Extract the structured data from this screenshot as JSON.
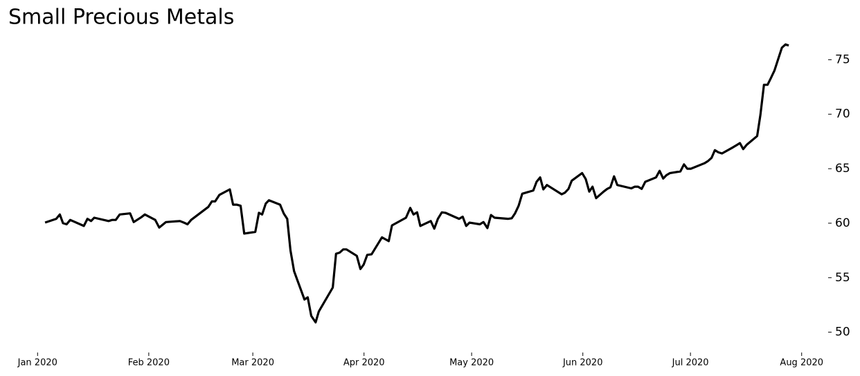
{
  "chart_data": {
    "type": "line",
    "title": "Small Precious Metals",
    "x": [
      2.1,
      5.2,
      6.2,
      7.1,
      8.1,
      9.1,
      12.9,
      13.9,
      14.9,
      15.8,
      19.8,
      20.8,
      21.8,
      22.9,
      25.8,
      26.8,
      28.9,
      29.9,
      32.8,
      33.9,
      35.8,
      39.7,
      40.8,
      41.8,
      42.8,
      47.6,
      48.6,
      49.5,
      50.7,
      53.6,
      54.5,
      55.5,
      56.6,
      57.6,
      60.7,
      61.7,
      62.6,
      63.6,
      64.5,
      67.6,
      68.6,
      69.6,
      70.5,
      71.5,
      72.4,
      74.4,
      75.3,
      76.3,
      77.5,
      78.4,
      82.3,
      83.2,
      84.2,
      85.2,
      86.1,
      89.0,
      90.0,
      90.9,
      91.9,
      93.1,
      96.0,
      97.9,
      98.8,
      102.7,
      103.9,
      104.8,
      105.8,
      106.7,
      109.6,
      110.6,
      111.6,
      112.7,
      113.7,
      117.5,
      118.5,
      119.5,
      120.4,
      123.3,
      124.3,
      125.4,
      126.4,
      127.4,
      131.2,
      132.2,
      133.1,
      134.1,
      135.1,
      138.2,
      139.1,
      140.1,
      141.0,
      142.0,
      146.1,
      147.0,
      148.0,
      148.9,
      151.8,
      152.8,
      153.8,
      154.7,
      155.7,
      157.8,
      158.8,
      159.7,
      160.7,
      161.6,
      165.5,
      166.5,
      167.4,
      168.4,
      169.4,
      172.4,
      173.4,
      174.4,
      175.3,
      176.3,
      179.2,
      180.2,
      181.1,
      182.1,
      185.9,
      186.9,
      187.9,
      188.8,
      189.8,
      190.8,
      193.8,
      194.8,
      195.8,
      196.7,
      197.7,
      200.6,
      201.5,
      202.5,
      203.5,
      204.4,
      205.4,
      207.5,
      208.5,
      209.4
    ],
    "series": [
      {
        "name": "Small Precious Metals",
        "color": "#000000",
        "values": [
          60.06,
          60.4,
          60.8,
          60.0,
          59.9,
          60.3,
          59.75,
          60.4,
          60.2,
          60.5,
          60.2,
          60.3,
          60.3,
          60.8,
          60.9,
          60.1,
          60.55,
          60.8,
          60.3,
          59.6,
          60.1,
          60.2,
          60.05,
          59.9,
          60.3,
          61.5,
          62.0,
          62.0,
          62.6,
          63.1,
          61.7,
          61.7,
          61.6,
          59.05,
          59.2,
          60.95,
          60.8,
          61.8,
          62.1,
          61.7,
          60.9,
          60.4,
          57.5,
          55.6,
          54.8,
          53.0,
          53.2,
          51.5,
          50.9,
          51.9,
          54.1,
          57.2,
          57.3,
          57.6,
          57.6,
          57.0,
          55.8,
          56.2,
          57.1,
          57.15,
          58.7,
          58.35,
          59.8,
          60.5,
          61.4,
          60.8,
          61.0,
          59.75,
          60.2,
          59.5,
          60.4,
          61.0,
          60.95,
          60.4,
          60.6,
          59.75,
          60.05,
          59.9,
          60.1,
          59.55,
          60.75,
          60.5,
          60.4,
          60.45,
          60.9,
          61.6,
          62.7,
          63.0,
          63.8,
          64.2,
          63.1,
          63.5,
          62.65,
          62.8,
          63.15,
          63.9,
          64.6,
          64.05,
          62.9,
          63.35,
          62.3,
          62.9,
          63.15,
          63.3,
          64.3,
          63.5,
          63.2,
          63.35,
          63.35,
          63.15,
          63.8,
          64.2,
          64.8,
          64.1,
          64.4,
          64.6,
          64.75,
          65.4,
          65.0,
          65.0,
          65.5,
          65.7,
          66.0,
          66.7,
          66.5,
          66.4,
          66.95,
          67.15,
          67.35,
          66.8,
          67.2,
          68.0,
          69.95,
          72.7,
          72.7,
          73.3,
          74.0,
          76.1,
          76.4,
          76.3
        ]
      }
    ],
    "xlim": [
      -7,
      220
    ],
    "xticks": [
      {
        "value": 0,
        "label": "Jan 2020"
      },
      {
        "value": 31,
        "label": "Feb 2020"
      },
      {
        "value": 60,
        "label": "Mar 2020"
      },
      {
        "value": 91,
        "label": "Apr 2020"
      },
      {
        "value": 121,
        "label": "May 2020"
      },
      {
        "value": 152,
        "label": "Jun 2020"
      },
      {
        "value": 182,
        "label": "Jul 2020"
      },
      {
        "value": 213,
        "label": "Aug 2020"
      }
    ],
    "ylim": [
      48.2,
      76.8
    ],
    "yticks": [
      50,
      55,
      60,
      65,
      70,
      75
    ]
  }
}
